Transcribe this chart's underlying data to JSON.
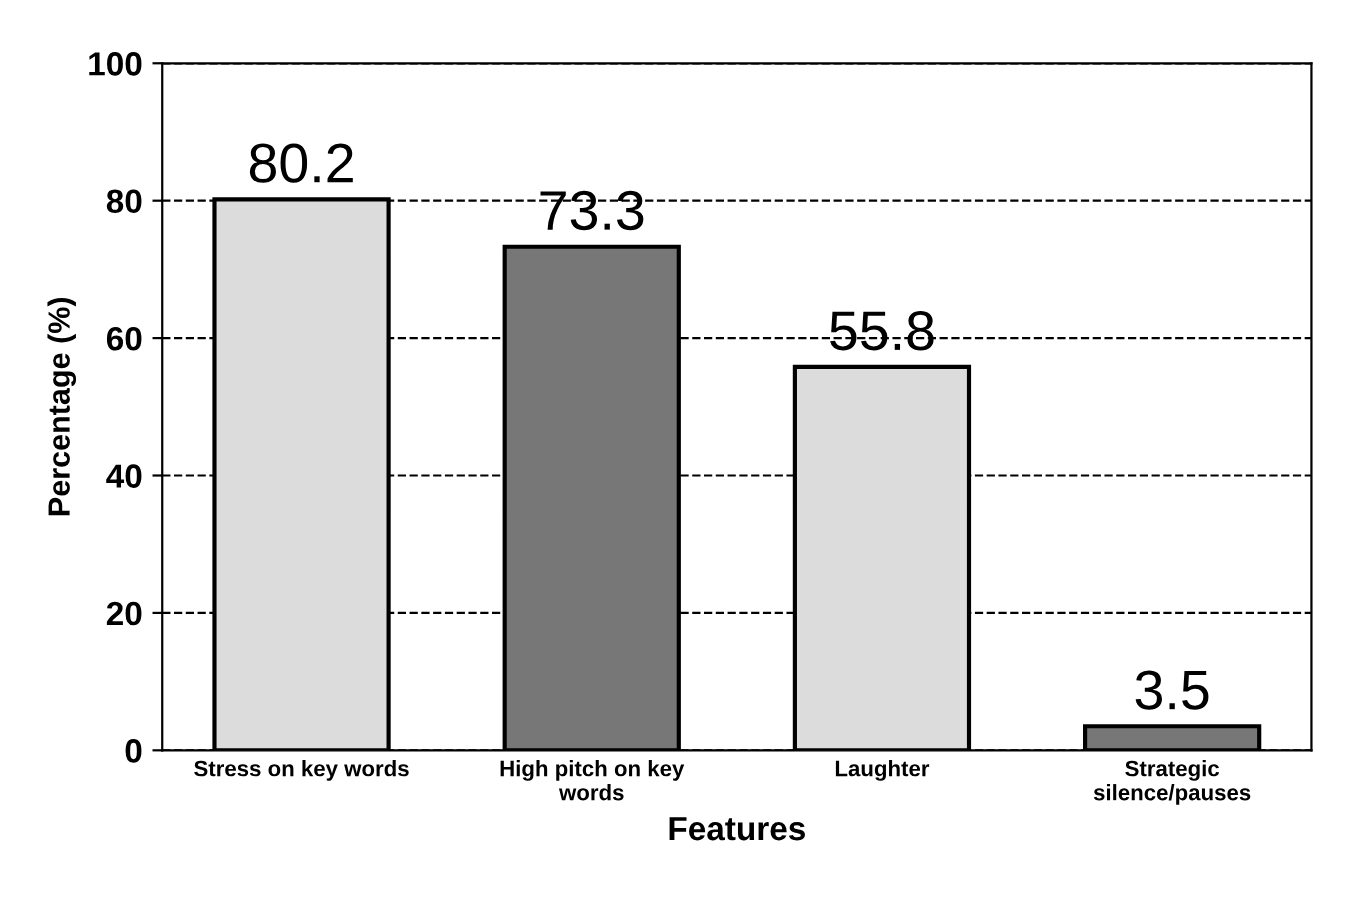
{
  "chart_data": {
    "type": "bar",
    "xlabel": "Features",
    "ylabel": "Percentage (%)",
    "categories": [
      "Stress on key words",
      "High pitch on key\nwords",
      "Laughter",
      "Strategic\nsilence/pauses"
    ],
    "values": [
      80.2,
      73.3,
      55.8,
      3.5
    ],
    "colors": [
      "#dcdcdc",
      "#777777",
      "#dcdcdc",
      "#777777"
    ],
    "ylim": [
      0,
      100
    ],
    "yticks": [
      0,
      20,
      40,
      60,
      80,
      100
    ],
    "grid": "y",
    "data_labels": true
  }
}
